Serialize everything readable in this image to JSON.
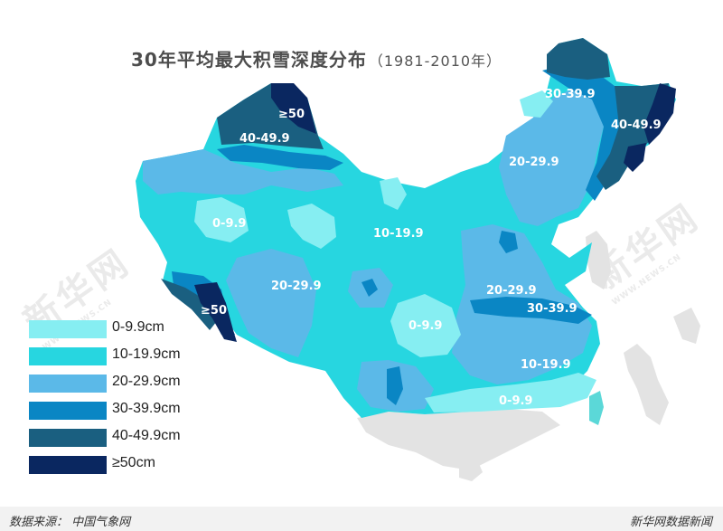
{
  "title": {
    "main": "30年平均最大积雪深度分布",
    "sub": "（1981-2010年）"
  },
  "legend": [
    {
      "label": "0-9.9cm",
      "color": "#86eef2"
    },
    {
      "label": "10-19.9cm",
      "color": "#27d6e0"
    },
    {
      "label": "20-29.9cm",
      "color": "#5bb9e8"
    },
    {
      "label": "30-39.9cm",
      "color": "#0a86c4"
    },
    {
      "label": "40-49.9cm",
      "color": "#1a5f80"
    },
    {
      "label": "≥50cm",
      "color": "#0a2760"
    }
  ],
  "map_labels": {
    "ne_30": "30-39.9",
    "ne_40": "40-49.9",
    "ne_20": "20-29.9",
    "xj_50": "≥50",
    "xj_40": "40-49.9",
    "xj_0": "0-9.9",
    "c_10": "10-19.9",
    "tb_20": "20-29.9",
    "tb_50": "≥50",
    "c_0": "0-9.9",
    "e_20": "20-29.9",
    "e_30": "30-39.9",
    "se_10": "10-19.9",
    "s_0": "0-9.9"
  },
  "watermark": {
    "text": "新华网",
    "small": "WWW.NEWS.CN"
  },
  "footer": {
    "source": "数据来源：  中国气象网",
    "brand": "新华网数据新闻"
  }
}
